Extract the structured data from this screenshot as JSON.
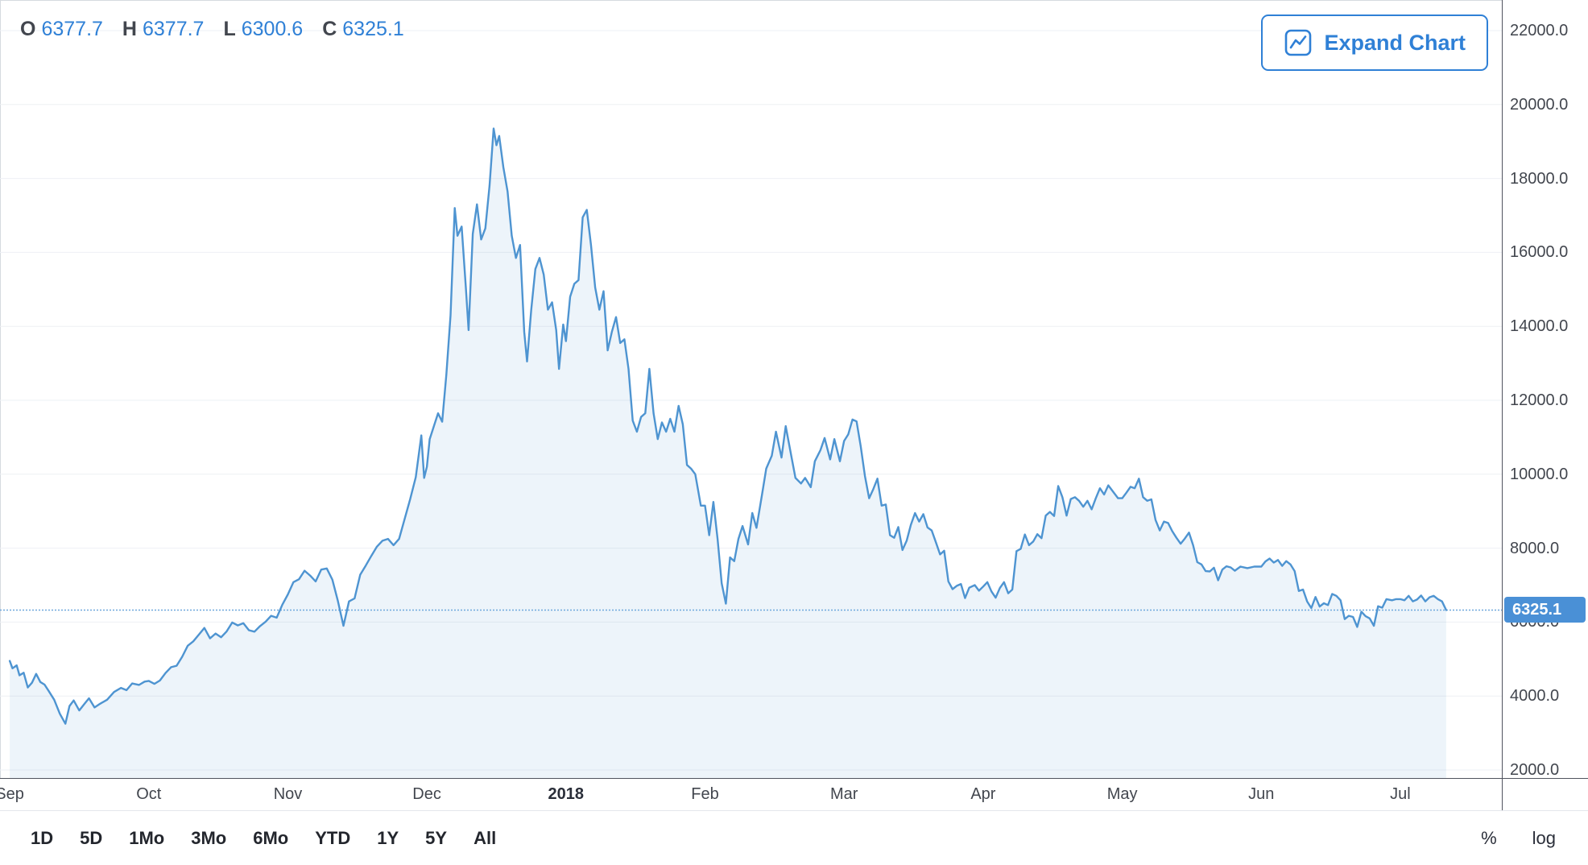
{
  "colors": {
    "accent": "#2f80d6",
    "line_blue": "#4e94d1",
    "area_fill": "rgba(78,148,209,0.10)",
    "current_price_line": "#6fa8dc",
    "axis_line": "#50535e",
    "grid_line": "#eef0f4",
    "badge_bg": "#4a90d6",
    "text_dark": "#42464e"
  },
  "legend": {
    "items": [
      {
        "key": "O",
        "value": "6377.7"
      },
      {
        "key": "H",
        "value": "6377.7"
      },
      {
        "key": "L",
        "value": "6300.6"
      },
      {
        "key": "C",
        "value": "6325.1"
      }
    ]
  },
  "expand_button": {
    "label": "Expand Chart"
  },
  "price_scale": {
    "ticks": [
      "22000.0",
      "20000.0",
      "18000.0",
      "16000.0",
      "14000.0",
      "12000.0",
      "10000.0",
      "8000.0",
      "6000.0",
      "4000.0",
      "2000.0"
    ],
    "current_price_label": "6325.1"
  },
  "time_axis": {
    "ticks": [
      {
        "t": 0,
        "label": "Sep",
        "bold": false
      },
      {
        "t": 1,
        "label": "Oct",
        "bold": false
      },
      {
        "t": 2,
        "label": "Nov",
        "bold": false
      },
      {
        "t": 3,
        "label": "Dec",
        "bold": false
      },
      {
        "t": 4,
        "label": "2018",
        "bold": true
      },
      {
        "t": 5,
        "label": "Feb",
        "bold": false
      },
      {
        "t": 6,
        "label": "Mar",
        "bold": false
      },
      {
        "t": 7,
        "label": "Apr",
        "bold": false
      },
      {
        "t": 8,
        "label": "May",
        "bold": false
      },
      {
        "t": 9,
        "label": "Jun",
        "bold": false
      },
      {
        "t": 10,
        "label": "Jul",
        "bold": false
      }
    ]
  },
  "toolbar": {
    "ranges": [
      "1D",
      "5D",
      "1Mo",
      "3Mo",
      "6Mo",
      "YTD",
      "1Y",
      "5Y",
      "All"
    ],
    "scale_buttons": [
      "%",
      "log"
    ]
  },
  "chart_data": {
    "type": "area",
    "title": "",
    "xlabel": "",
    "ylabel": "",
    "x_unit": "months since 2017-09 (0=Sep 2017, 4=Jan 2018, 10=Jul 2018)",
    "ylim": [
      2000,
      22000
    ],
    "y_ticks": [
      22000,
      20000,
      18000,
      16000,
      14000,
      12000,
      10000,
      8000,
      6000,
      4000,
      2000
    ],
    "ohlc": {
      "open": 6377.7,
      "high": 6377.7,
      "low": 6300.6,
      "close": 6325.1
    },
    "current_price": 6325.1,
    "grid": "horizontal",
    "points": [
      [
        0.0,
        4950
      ],
      [
        0.02,
        4750
      ],
      [
        0.05,
        4830
      ],
      [
        0.07,
        4560
      ],
      [
        0.1,
        4630
      ],
      [
        0.13,
        4230
      ],
      [
        0.16,
        4360
      ],
      [
        0.19,
        4600
      ],
      [
        0.22,
        4380
      ],
      [
        0.25,
        4310
      ],
      [
        0.28,
        4140
      ],
      [
        0.32,
        3900
      ],
      [
        0.36,
        3520
      ],
      [
        0.4,
        3250
      ],
      [
        0.43,
        3730
      ],
      [
        0.46,
        3880
      ],
      [
        0.5,
        3610
      ],
      [
        0.54,
        3800
      ],
      [
        0.57,
        3940
      ],
      [
        0.61,
        3690
      ],
      [
        0.65,
        3790
      ],
      [
        0.7,
        3900
      ],
      [
        0.75,
        4110
      ],
      [
        0.8,
        4220
      ],
      [
        0.84,
        4160
      ],
      [
        0.88,
        4340
      ],
      [
        0.93,
        4300
      ],
      [
        0.97,
        4390
      ],
      [
        1.0,
        4410
      ],
      [
        1.04,
        4330
      ],
      [
        1.08,
        4420
      ],
      [
        1.12,
        4620
      ],
      [
        1.16,
        4780
      ],
      [
        1.2,
        4820
      ],
      [
        1.24,
        5060
      ],
      [
        1.28,
        5360
      ],
      [
        1.32,
        5480
      ],
      [
        1.36,
        5660
      ],
      [
        1.4,
        5840
      ],
      [
        1.44,
        5560
      ],
      [
        1.48,
        5690
      ],
      [
        1.52,
        5590
      ],
      [
        1.56,
        5750
      ],
      [
        1.6,
        5990
      ],
      [
        1.64,
        5910
      ],
      [
        1.68,
        5970
      ],
      [
        1.72,
        5780
      ],
      [
        1.76,
        5740
      ],
      [
        1.8,
        5890
      ],
      [
        1.84,
        6010
      ],
      [
        1.88,
        6170
      ],
      [
        1.92,
        6120
      ],
      [
        1.96,
        6470
      ],
      [
        2.0,
        6750
      ],
      [
        2.04,
        7080
      ],
      [
        2.08,
        7160
      ],
      [
        2.12,
        7390
      ],
      [
        2.16,
        7260
      ],
      [
        2.2,
        7100
      ],
      [
        2.24,
        7420
      ],
      [
        2.28,
        7450
      ],
      [
        2.32,
        7150
      ],
      [
        2.36,
        6570
      ],
      [
        2.4,
        5900
      ],
      [
        2.44,
        6560
      ],
      [
        2.48,
        6640
      ],
      [
        2.52,
        7280
      ],
      [
        2.56,
        7530
      ],
      [
        2.6,
        7790
      ],
      [
        2.64,
        8040
      ],
      [
        2.68,
        8200
      ],
      [
        2.72,
        8250
      ],
      [
        2.76,
        8080
      ],
      [
        2.8,
        8250
      ],
      [
        2.84,
        8790
      ],
      [
        2.88,
        9330
      ],
      [
        2.92,
        9920
      ],
      [
        2.96,
        11050
      ],
      [
        2.98,
        9900
      ],
      [
        3.0,
        10200
      ],
      [
        3.02,
        10950
      ],
      [
        3.05,
        11300
      ],
      [
        3.08,
        11650
      ],
      [
        3.11,
        11420
      ],
      [
        3.14,
        12700
      ],
      [
        3.17,
        14300
      ],
      [
        3.2,
        17200
      ],
      [
        3.22,
        16450
      ],
      [
        3.25,
        16700
      ],
      [
        3.28,
        15050
      ],
      [
        3.3,
        13900
      ],
      [
        3.33,
        16500
      ],
      [
        3.36,
        17300
      ],
      [
        3.39,
        16350
      ],
      [
        3.42,
        16650
      ],
      [
        3.45,
        17800
      ],
      [
        3.48,
        19350
      ],
      [
        3.5,
        18900
      ],
      [
        3.52,
        19150
      ],
      [
        3.55,
        18300
      ],
      [
        3.58,
        17650
      ],
      [
        3.61,
        16450
      ],
      [
        3.64,
        15850
      ],
      [
        3.67,
        16200
      ],
      [
        3.7,
        13850
      ],
      [
        3.72,
        13050
      ],
      [
        3.75,
        14450
      ],
      [
        3.78,
        15550
      ],
      [
        3.81,
        15850
      ],
      [
        3.84,
        15400
      ],
      [
        3.87,
        14450
      ],
      [
        3.9,
        14650
      ],
      [
        3.93,
        13900
      ],
      [
        3.95,
        12850
      ],
      [
        3.98,
        14050
      ],
      [
        4.0,
        13600
      ],
      [
        4.03,
        14800
      ],
      [
        4.06,
        15150
      ],
      [
        4.09,
        15250
      ],
      [
        4.12,
        16950
      ],
      [
        4.15,
        17150
      ],
      [
        4.18,
        16200
      ],
      [
        4.21,
        15050
      ],
      [
        4.24,
        14450
      ],
      [
        4.27,
        14950
      ],
      [
        4.3,
        13350
      ],
      [
        4.33,
        13850
      ],
      [
        4.36,
        14250
      ],
      [
        4.39,
        13550
      ],
      [
        4.42,
        13650
      ],
      [
        4.45,
        12850
      ],
      [
        4.48,
        11450
      ],
      [
        4.51,
        11150
      ],
      [
        4.54,
        11550
      ],
      [
        4.57,
        11650
      ],
      [
        4.6,
        12850
      ],
      [
        4.63,
        11650
      ],
      [
        4.66,
        10950
      ],
      [
        4.69,
        11400
      ],
      [
        4.72,
        11150
      ],
      [
        4.75,
        11500
      ],
      [
        4.78,
        11150
      ],
      [
        4.81,
        11850
      ],
      [
        4.84,
        11350
      ],
      [
        4.87,
        10250
      ],
      [
        4.9,
        10150
      ],
      [
        4.93,
        10000
      ],
      [
        4.97,
        9150
      ],
      [
        5.0,
        9150
      ],
      [
        5.03,
        8350
      ],
      [
        5.06,
        9250
      ],
      [
        5.09,
        8250
      ],
      [
        5.12,
        7050
      ],
      [
        5.15,
        6500
      ],
      [
        5.18,
        7750
      ],
      [
        5.21,
        7650
      ],
      [
        5.24,
        8250
      ],
      [
        5.27,
        8600
      ],
      [
        5.31,
        8100
      ],
      [
        5.34,
        8950
      ],
      [
        5.37,
        8550
      ],
      [
        5.41,
        9450
      ],
      [
        5.44,
        10150
      ],
      [
        5.48,
        10500
      ],
      [
        5.51,
        11150
      ],
      [
        5.55,
        10450
      ],
      [
        5.58,
        11300
      ],
      [
        5.62,
        10500
      ],
      [
        5.65,
        9900
      ],
      [
        5.69,
        9750
      ],
      [
        5.72,
        9900
      ],
      [
        5.76,
        9650
      ],
      [
        5.79,
        10350
      ],
      [
        5.83,
        10650
      ],
      [
        5.86,
        10980
      ],
      [
        5.9,
        10400
      ],
      [
        5.93,
        10950
      ],
      [
        5.97,
        10350
      ],
      [
        6.0,
        10900
      ],
      [
        6.03,
        11080
      ],
      [
        6.06,
        11480
      ],
      [
        6.09,
        11430
      ],
      [
        6.12,
        10750
      ],
      [
        6.15,
        9950
      ],
      [
        6.18,
        9350
      ],
      [
        6.21,
        9600
      ],
      [
        6.24,
        9880
      ],
      [
        6.27,
        9150
      ],
      [
        6.3,
        9180
      ],
      [
        6.33,
        8350
      ],
      [
        6.36,
        8280
      ],
      [
        6.39,
        8570
      ],
      [
        6.42,
        7950
      ],
      [
        6.45,
        8200
      ],
      [
        6.48,
        8630
      ],
      [
        6.51,
        8950
      ],
      [
        6.54,
        8720
      ],
      [
        6.57,
        8920
      ],
      [
        6.6,
        8560
      ],
      [
        6.63,
        8480
      ],
      [
        6.66,
        8160
      ],
      [
        6.69,
        7830
      ],
      [
        6.72,
        7930
      ],
      [
        6.75,
        7100
      ],
      [
        6.78,
        6890
      ],
      [
        6.81,
        6980
      ],
      [
        6.84,
        7030
      ],
      [
        6.87,
        6650
      ],
      [
        6.9,
        6930
      ],
      [
        6.94,
        7000
      ],
      [
        6.97,
        6850
      ],
      [
        7.0,
        6960
      ],
      [
        7.03,
        7080
      ],
      [
        7.06,
        6830
      ],
      [
        7.09,
        6660
      ],
      [
        7.12,
        6920
      ],
      [
        7.15,
        7080
      ],
      [
        7.18,
        6780
      ],
      [
        7.21,
        6880
      ],
      [
        7.24,
        7920
      ],
      [
        7.27,
        7980
      ],
      [
        7.3,
        8370
      ],
      [
        7.33,
        8080
      ],
      [
        7.36,
        8180
      ],
      [
        7.39,
        8380
      ],
      [
        7.42,
        8270
      ],
      [
        7.45,
        8880
      ],
      [
        7.48,
        8980
      ],
      [
        7.51,
        8870
      ],
      [
        7.54,
        9680
      ],
      [
        7.57,
        9380
      ],
      [
        7.6,
        8880
      ],
      [
        7.63,
        9330
      ],
      [
        7.66,
        9380
      ],
      [
        7.69,
        9280
      ],
      [
        7.72,
        9120
      ],
      [
        7.75,
        9280
      ],
      [
        7.78,
        9050
      ],
      [
        7.81,
        9350
      ],
      [
        7.84,
        9620
      ],
      [
        7.87,
        9450
      ],
      [
        7.9,
        9700
      ],
      [
        7.93,
        9550
      ],
      [
        7.97,
        9350
      ],
      [
        8.0,
        9350
      ],
      [
        8.03,
        9500
      ],
      [
        8.06,
        9660
      ],
      [
        8.09,
        9620
      ],
      [
        8.12,
        9880
      ],
      [
        8.15,
        9380
      ],
      [
        8.18,
        9280
      ],
      [
        8.21,
        9320
      ],
      [
        8.24,
        8760
      ],
      [
        8.27,
        8480
      ],
      [
        8.3,
        8720
      ],
      [
        8.33,
        8680
      ],
      [
        8.36,
        8460
      ],
      [
        8.39,
        8280
      ],
      [
        8.42,
        8120
      ],
      [
        8.45,
        8260
      ],
      [
        8.48,
        8420
      ],
      [
        8.51,
        8080
      ],
      [
        8.54,
        7620
      ],
      [
        8.57,
        7560
      ],
      [
        8.6,
        7380
      ],
      [
        8.63,
        7370
      ],
      [
        8.66,
        7470
      ],
      [
        8.69,
        7130
      ],
      [
        8.72,
        7420
      ],
      [
        8.75,
        7510
      ],
      [
        8.78,
        7480
      ],
      [
        8.81,
        7390
      ],
      [
        8.85,
        7500
      ],
      [
        8.9,
        7460
      ],
      [
        8.95,
        7500
      ],
      [
        9.0,
        7500
      ],
      [
        9.03,
        7640
      ],
      [
        9.06,
        7720
      ],
      [
        9.09,
        7610
      ],
      [
        9.12,
        7680
      ],
      [
        9.15,
        7520
      ],
      [
        9.18,
        7650
      ],
      [
        9.21,
        7560
      ],
      [
        9.24,
        7380
      ],
      [
        9.27,
        6840
      ],
      [
        9.3,
        6880
      ],
      [
        9.33,
        6560
      ],
      [
        9.36,
        6380
      ],
      [
        9.39,
        6680
      ],
      [
        9.42,
        6420
      ],
      [
        9.45,
        6510
      ],
      [
        9.48,
        6460
      ],
      [
        9.51,
        6760
      ],
      [
        9.54,
        6710
      ],
      [
        9.57,
        6590
      ],
      [
        9.6,
        6080
      ],
      [
        9.63,
        6170
      ],
      [
        9.66,
        6140
      ],
      [
        9.69,
        5870
      ],
      [
        9.72,
        6280
      ],
      [
        9.75,
        6160
      ],
      [
        9.78,
        6100
      ],
      [
        9.81,
        5900
      ],
      [
        9.84,
        6430
      ],
      [
        9.87,
        6390
      ],
      [
        9.9,
        6620
      ],
      [
        9.94,
        6590
      ],
      [
        9.97,
        6620
      ],
      [
        10.0,
        6620
      ],
      [
        10.03,
        6590
      ],
      [
        10.06,
        6710
      ],
      [
        10.09,
        6560
      ],
      [
        10.12,
        6610
      ],
      [
        10.15,
        6720
      ],
      [
        10.18,
        6560
      ],
      [
        10.21,
        6670
      ],
      [
        10.24,
        6710
      ],
      [
        10.27,
        6620
      ],
      [
        10.3,
        6560
      ],
      [
        10.33,
        6325
      ]
    ]
  }
}
